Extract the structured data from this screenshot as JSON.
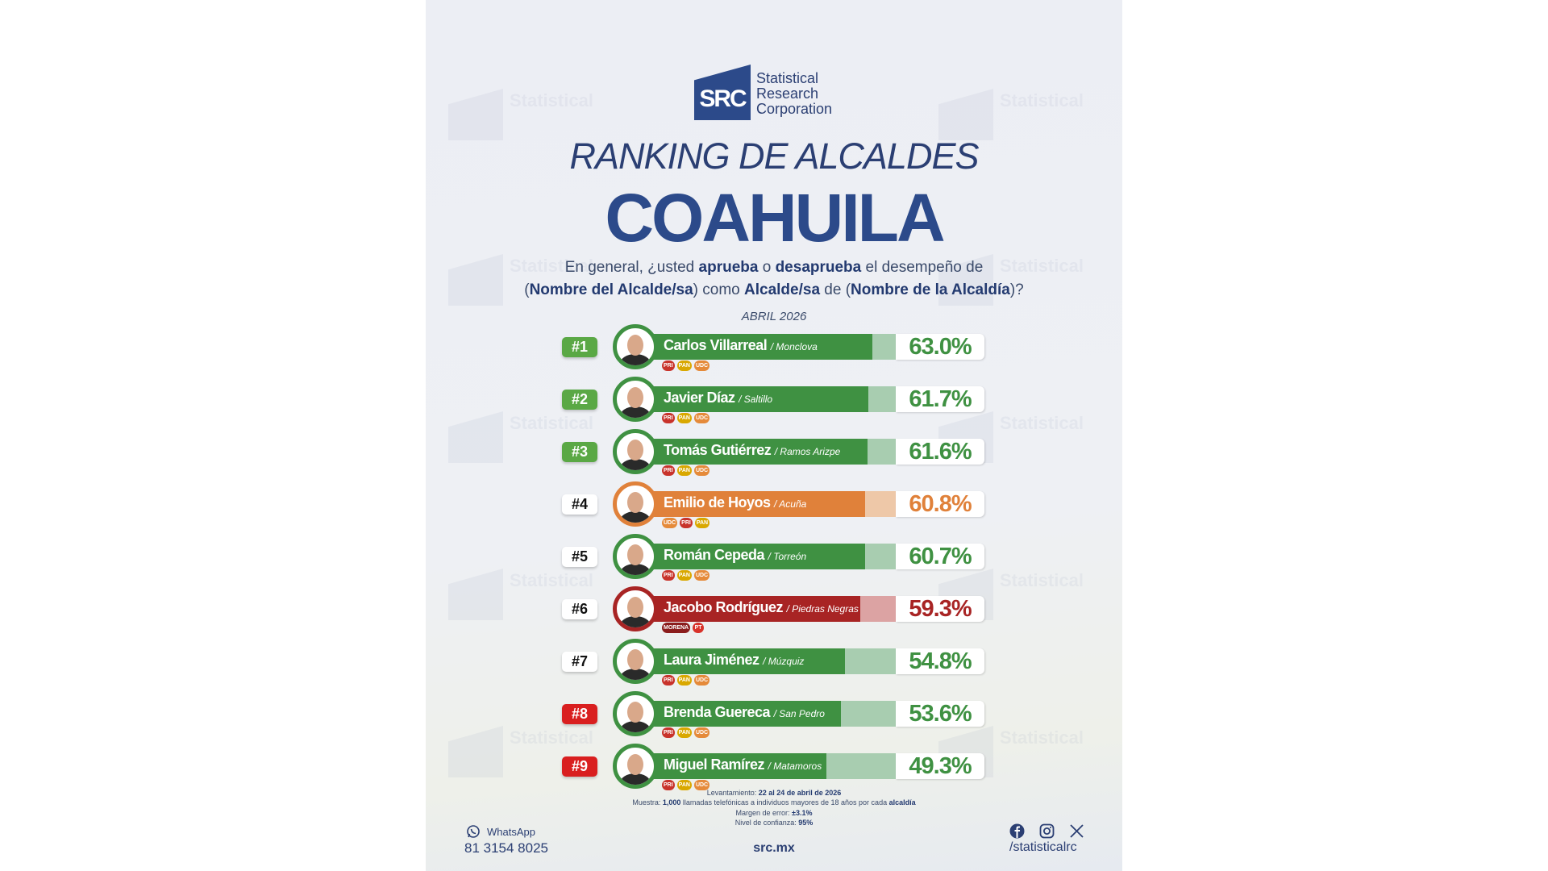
{
  "logo": {
    "mark": "SRC",
    "line1": "Statistical",
    "line2": "Research",
    "line3": "Corporation"
  },
  "title": "RANKING DE ALCALDES",
  "state": "COAHUILA",
  "question": {
    "l1a": "En general, ¿usted ",
    "l1b": "aprueba",
    "l1c": " o ",
    "l1d": "desaprueba",
    "l1e": " el desempeño de",
    "l2a": "(",
    "l2b": "Nombre del Alcalde/sa",
    "l2c": ") como ",
    "l2d": "Alcalde/sa",
    "l2e": " de (",
    "l2f": "Nombre de la Alcaldía",
    "l2g": ")?"
  },
  "date": "ABRIL 2026",
  "colors": {
    "green": "#3f9142",
    "green_light": "#a8cdb0",
    "orange": "#e0813a",
    "orange_light": "#eec8a8",
    "red": "#a82424",
    "red_light": "#dca3a3",
    "rank_green": "#5aa845",
    "rank_red": "#d91f1f",
    "navy": "#2c4a8a"
  },
  "chart_data": {
    "type": "bar",
    "rows": [
      {
        "rank": "#1",
        "name": "Carlos Villarreal",
        "city": "/ Monclova",
        "value": 63.0,
        "label": "63.0%",
        "theme": "green",
        "rank_style": "green",
        "parties": [
          "PRI",
          "PAN",
          "UDC"
        ]
      },
      {
        "rank": "#2",
        "name": "Javier Díaz",
        "city": "/ Saltillo",
        "value": 61.7,
        "label": "61.7%",
        "theme": "green",
        "rank_style": "green",
        "parties": [
          "PRI",
          "PAN",
          "UDC"
        ]
      },
      {
        "rank": "#3",
        "name": "Tomás Gutiérrez",
        "city": "/ Ramos Arizpe",
        "value": 61.6,
        "label": "61.6%",
        "theme": "green",
        "rank_style": "green",
        "parties": [
          "PRI",
          "PAN",
          "UDC"
        ]
      },
      {
        "rank": "#4",
        "name": "Emilio de Hoyos",
        "city": "/ Acuña",
        "value": 60.8,
        "label": "60.8%",
        "theme": "orange",
        "rank_style": "white",
        "parties": [
          "UDC",
          "PRI",
          "PAN"
        ]
      },
      {
        "rank": "#5",
        "name": "Román Cepeda",
        "city": "/ Torreón",
        "value": 60.7,
        "label": "60.7%",
        "theme": "green",
        "rank_style": "white",
        "parties": [
          "PRI",
          "PAN",
          "UDC"
        ]
      },
      {
        "rank": "#6",
        "name": "Jacobo Rodríguez",
        "city": "/ Piedras Negras",
        "value": 59.3,
        "label": "59.3%",
        "theme": "red",
        "rank_style": "white",
        "parties": [
          "MORENA",
          "PT"
        ]
      },
      {
        "rank": "#7",
        "name": "Laura Jiménez",
        "city": "/ Múzquiz",
        "value": 54.8,
        "label": "54.8%",
        "theme": "green",
        "rank_style": "white",
        "parties": [
          "PRI",
          "PAN",
          "UDC"
        ]
      },
      {
        "rank": "#8",
        "name": "Brenda Guereca",
        "city": "/ San Pedro",
        "value": 53.6,
        "label": "53.6%",
        "theme": "green",
        "rank_style": "red",
        "parties": [
          "PRI",
          "PAN",
          "UDC"
        ]
      },
      {
        "rank": "#9",
        "name": "Miguel Ramírez",
        "city": "/ Matamoros",
        "value": 49.3,
        "label": "49.3%",
        "theme": "green",
        "rank_style": "red",
        "parties": [
          "PRI",
          "PAN",
          "UDC"
        ]
      }
    ]
  },
  "notes": {
    "lev_label": "Levantamiento: ",
    "lev_value": "22 al 24 de abril de 2026",
    "muestra_label": "Muestra: ",
    "muestra_n": "1,000",
    "muestra_text": " llamadas telefónicas a individuos mayores de 18 años por cada ",
    "muestra_end": "alcaldía",
    "margen_label": "Margen de error: ",
    "margen_value": "±3.1%",
    "nivel_label": "Nivel de confianza: ",
    "nivel_value": "95%"
  },
  "footer": {
    "whatsapp_label": "WhatsApp",
    "phone": "81 3154 8025",
    "website": "src.mx",
    "social_handle": "/statisticalrc",
    "icons": [
      "whatsapp-icon",
      "facebook-icon",
      "instagram-icon",
      "x-icon"
    ]
  }
}
